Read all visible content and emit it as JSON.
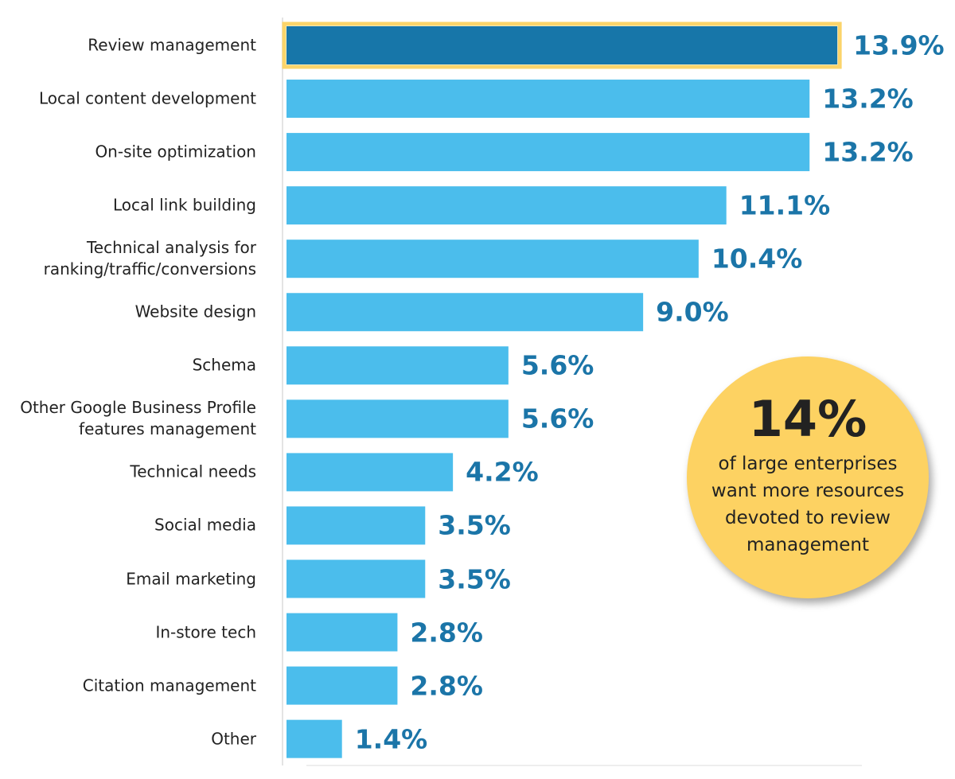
{
  "chart_data": {
    "type": "bar",
    "orientation": "horizontal",
    "categories": [
      "Review management",
      "Local content development",
      "On-site optimization",
      "Local link building",
      "Technical analysis for ranking/traffic/conversions",
      "Website design",
      "Schema",
      "Other Google Business Profile features management",
      "Technical needs",
      "Social media",
      "Email marketing",
      "In-store tech",
      "Citation management",
      "Other"
    ],
    "values": [
      13.9,
      13.2,
      13.2,
      11.1,
      10.4,
      9.0,
      5.6,
      5.6,
      4.2,
      3.5,
      3.5,
      2.8,
      2.8,
      1.4
    ],
    "value_labels": [
      "13.9%",
      "13.2%",
      "13.2%",
      "11.1%",
      "10.4%",
      "9.0%",
      "5.6%",
      "5.6%",
      "4.2%",
      "3.5%",
      "3.5%",
      "2.8%",
      "2.8%",
      "1.4%"
    ],
    "color": "#4bbdec",
    "highlight": 0,
    "highlight_color": "#1776a9",
    "highlight_border": "#fbd46a",
    "xlim": [
      0,
      14.5
    ],
    "annotation": {
      "headline": "14%",
      "text": "of large enterprises want more resources devoted to review management"
    }
  }
}
